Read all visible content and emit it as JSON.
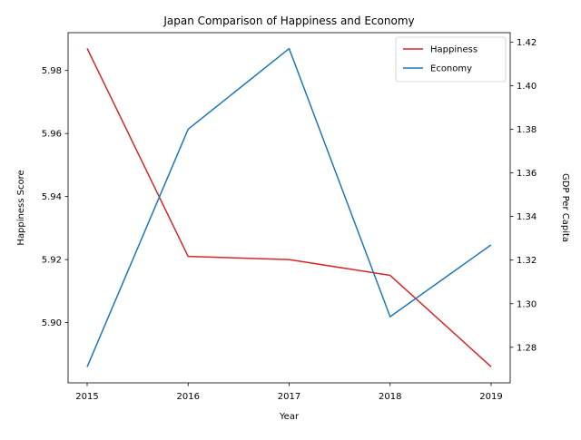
{
  "chart_data": {
    "type": "line",
    "title": "Japan Comparison of Happiness and Economy",
    "xlabel": "Year",
    "ylabel_left": "Happiness Score",
    "ylabel_right": "GDP Per Capita",
    "x": [
      "2015",
      "2016",
      "2017",
      "2018",
      "2019"
    ],
    "series": [
      {
        "name": "Happiness",
        "axis": "left",
        "color": "#d62728",
        "values": [
          5.987,
          5.921,
          5.92,
          5.915,
          5.886
        ]
      },
      {
        "name": "Economy",
        "axis": "right",
        "color": "#1f77b4",
        "values": [
          1.271,
          1.38,
          1.417,
          1.294,
          1.327
        ]
      }
    ],
    "ylim_left": [
      5.8809,
      5.992
    ],
    "ylim_right": [
      1.2637,
      1.4243
    ],
    "yticks_left": [
      "5.90",
      "5.92",
      "5.94",
      "5.96",
      "5.98"
    ],
    "yticks_right": [
      "1.28",
      "1.30",
      "1.32",
      "1.34",
      "1.36",
      "1.38",
      "1.40",
      "1.42"
    ],
    "grid": false,
    "legend_position": "top-right"
  }
}
